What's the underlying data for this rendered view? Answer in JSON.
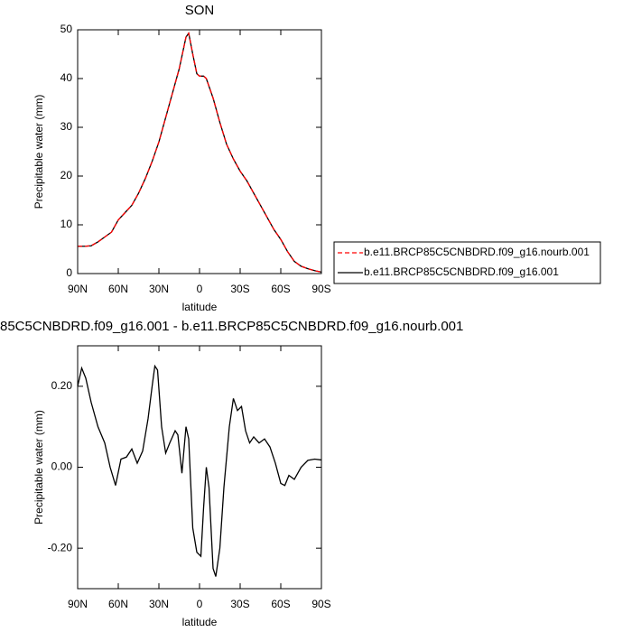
{
  "chart_data": [
    {
      "type": "line",
      "title": "SON",
      "xlabel": "latitude",
      "ylabel": "Precipitable water (mm)",
      "x": [
        90,
        85,
        80,
        75,
        70,
        65,
        60,
        55,
        50,
        45,
        40,
        35,
        30,
        25,
        20,
        15,
        10,
        8,
        5,
        2,
        0,
        -3,
        -5,
        -10,
        -15,
        -20,
        -25,
        -30,
        -35,
        -40,
        -45,
        -50,
        -55,
        -60,
        -65,
        -70,
        -75,
        -80,
        -85,
        -90
      ],
      "series": [
        {
          "name": "b.e11.BRCP85C5CNBDRD.f09_g16.nourb.001",
          "color": "#ff0000",
          "dash": true,
          "values": [
            5.6,
            5.6,
            5.7,
            6.5,
            7.5,
            8.5,
            11,
            12.5,
            14,
            16.5,
            19.5,
            23,
            27,
            32,
            37,
            42,
            48.5,
            49.3,
            45,
            41,
            40.5,
            40.5,
            40,
            36,
            31,
            26.5,
            23.5,
            21,
            19,
            16.5,
            14,
            11.5,
            9,
            7,
            4.5,
            2.5,
            1.5,
            1,
            0.6,
            0.3
          ]
        },
        {
          "name": "b.e11.BRCP85C5CNBDRD.f09_g16.001",
          "color": "#000000",
          "dash": false,
          "values": [
            5.6,
            5.6,
            5.7,
            6.5,
            7.5,
            8.5,
            11,
            12.5,
            14,
            16.5,
            19.5,
            23,
            27,
            32,
            37,
            42,
            48.5,
            49.3,
            45,
            41,
            40.5,
            40.5,
            40,
            36,
            31,
            26.5,
            23.5,
            21,
            19,
            16.5,
            14,
            11.5,
            9,
            7,
            4.5,
            2.5,
            1.5,
            1,
            0.6,
            0.3
          ]
        }
      ],
      "xlim": [
        90,
        -90
      ],
      "xticks": [
        {
          "value": 90,
          "label": "90N"
        },
        {
          "value": 60,
          "label": "60N"
        },
        {
          "value": 30,
          "label": "30N"
        },
        0,
        {
          "value": -30,
          "label": "30S"
        },
        {
          "value": -60,
          "label": "60S"
        },
        {
          "value": -90,
          "label": "90S"
        }
      ],
      "ylim": [
        0,
        50
      ],
      "yticks": [
        0,
        10,
        20,
        30,
        40,
        50
      ],
      "grid": false,
      "legend": "right"
    },
    {
      "type": "line",
      "title": "85C5CNBDRD.f09_g16.001 - b.e11.BRCP85C5CNBDRD.f09_g16.nourb.001",
      "xlabel": "latitude",
      "ylabel": "Precipitable water (mm)",
      "x": [
        90,
        87,
        84,
        80,
        75,
        70,
        66,
        62,
        58,
        54,
        50,
        46,
        42,
        38,
        35,
        33,
        31,
        28,
        25,
        22,
        18,
        16,
        13,
        10,
        8,
        5,
        2,
        -1,
        -3,
        -5,
        -7,
        -10,
        -12,
        -15,
        -18,
        -22,
        -25,
        -28,
        -31,
        -34,
        -37,
        -40,
        -44,
        -48,
        -52,
        -56,
        -60,
        -63,
        -66,
        -70,
        -75,
        -80,
        -85,
        -90
      ],
      "series": [
        {
          "color": "#000000",
          "dash": false,
          "values": [
            0.2,
            0.245,
            0.22,
            0.16,
            0.1,
            0.06,
            0.0,
            -0.045,
            0.02,
            0.025,
            0.045,
            0.01,
            0.04,
            0.12,
            0.2,
            0.25,
            0.24,
            0.1,
            0.035,
            0.06,
            0.09,
            0.08,
            -0.015,
            0.1,
            0.07,
            -0.15,
            -0.21,
            -0.22,
            -0.1,
            0.0,
            -0.05,
            -0.25,
            -0.27,
            -0.2,
            -0.05,
            0.1,
            0.17,
            0.14,
            0.15,
            0.09,
            0.06,
            0.075,
            0.06,
            0.07,
            0.05,
            0.01,
            -0.04,
            -0.045,
            -0.02,
            -0.03,
            0.0,
            0.017,
            0.02,
            0.018
          ]
        }
      ],
      "xlim": [
        90,
        -90
      ],
      "xticks": [
        {
          "value": 90,
          "label": "90N"
        },
        {
          "value": 60,
          "label": "60N"
        },
        {
          "value": 30,
          "label": "30N"
        },
        0,
        {
          "value": -30,
          "label": "30S"
        },
        {
          "value": -60,
          "label": "60S"
        },
        {
          "value": -90,
          "label": "90S"
        }
      ],
      "ylim": [
        -0.3,
        0.3
      ],
      "yticks": [
        {
          "value": -0.2,
          "label": "-0.20"
        },
        {
          "value": 0,
          "label": "0.00"
        },
        {
          "value": 0.2,
          "label": "0.20"
        }
      ],
      "grid": false
    }
  ]
}
